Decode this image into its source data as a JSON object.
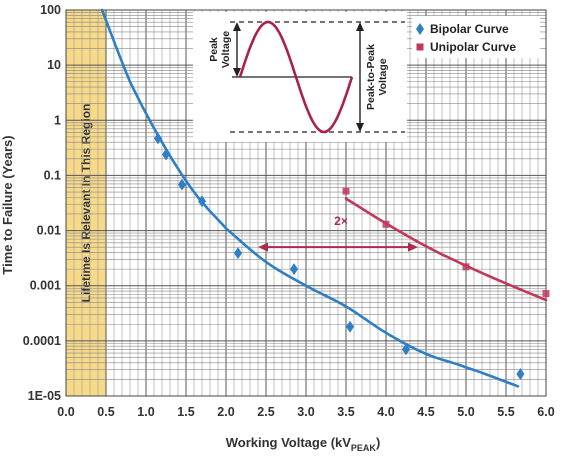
{
  "chart_data": {
    "type": "scatter",
    "xlabel": "Working Voltage (kV",
    "xlabel_sub": "PEAK",
    "xlabel_close": ")",
    "ylabel": "Time to Failure (Years)",
    "x_ticks": [
      "0.0",
      "0.5",
      "1.0",
      "1.5",
      "2.0",
      "2.5",
      "3.0",
      "3.5",
      "4.0",
      "4.5",
      "5.0",
      "5.5",
      "6.0"
    ],
    "y_ticks": [
      "1E-05",
      "0.0001",
      "0.001",
      "0.01",
      "0.1",
      "1",
      "10",
      "100"
    ],
    "xlim": [
      0,
      6
    ],
    "ylim": [
      1e-05,
      100
    ],
    "y_scale": "log",
    "grid": true,
    "legend_position": "top-right",
    "region": {
      "x_range": [
        0,
        0.5
      ],
      "label": "Lifetime Is Relevant In This Region",
      "color": "#f7d98a"
    },
    "series": [
      {
        "name": "Bipolar Curve",
        "marker": "diamond",
        "color": "#2e7fc4",
        "points": [
          [
            1.15,
            0.47
          ],
          [
            1.25,
            0.24
          ],
          [
            1.45,
            0.068
          ],
          [
            1.7,
            0.034
          ],
          [
            2.15,
            0.0039
          ],
          [
            2.85,
            0.002
          ],
          [
            3.55,
            0.00018
          ],
          [
            4.25,
            7e-05
          ],
          [
            5.68,
            2.5e-05
          ]
        ],
        "fit": {
          "x_range": [
            0.45,
            5.65
          ],
          "x": [
            0.45,
            0.8,
            1.2,
            1.6,
            2.0,
            2.5,
            3.0,
            3.5,
            4.0,
            4.5,
            5.0,
            5.65
          ],
          "y": [
            100,
            5,
            0.4,
            0.05,
            0.011,
            0.0027,
            0.001,
            0.00042,
            0.00014,
            5.8e-05,
            3.3e-05,
            1.5e-05
          ]
        }
      },
      {
        "name": "Unipolar Curve",
        "marker": "square",
        "color": "#c0395a",
        "points": [
          [
            3.5,
            0.052
          ],
          [
            4.0,
            0.013
          ],
          [
            5.0,
            0.0022
          ],
          [
            6.0,
            0.00072
          ]
        ],
        "fit": {
          "x": [
            3.5,
            4.0,
            4.5,
            5.0,
            5.5,
            6.0
          ],
          "y": [
            0.038,
            0.0135,
            0.0052,
            0.0023,
            0.0011,
            0.00055
          ]
        }
      }
    ],
    "annotation": {
      "text": "2×",
      "x_from": 2.4,
      "x_to": 4.4,
      "y": 0.005,
      "color": "#b0294f"
    },
    "inset": {
      "peak_label": [
        "Peak",
        "Voltage"
      ],
      "p2p_label": [
        "Peak-to-Peak",
        "Voltage"
      ]
    }
  }
}
